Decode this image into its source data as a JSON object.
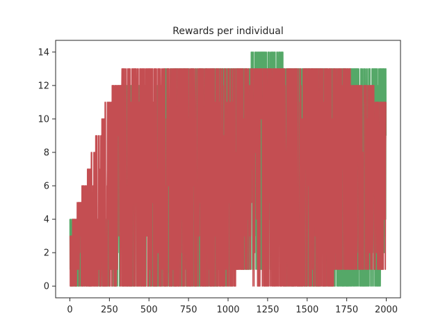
{
  "chart_data": {
    "type": "line",
    "title": "Rewards per individual",
    "xlabel": "",
    "ylabel": "",
    "xlim": [
      -90,
      2090
    ],
    "ylim": [
      -0.7,
      14.7
    ],
    "xticks": [
      0,
      250,
      500,
      750,
      1000,
      1250,
      1500,
      1750,
      2000
    ],
    "yticks": [
      0,
      2,
      4,
      6,
      8,
      10,
      12,
      14
    ],
    "grid": false,
    "n_points": 2000,
    "series": [
      {
        "color": "#55a868",
        "envelope": [
          {
            "x": 0,
            "low": 0,
            "high": 4
          },
          {
            "x": 240,
            "low": 0,
            "high": 4
          },
          {
            "x": 330,
            "low": 0,
            "high": 12
          },
          {
            "x": 560,
            "low": 0,
            "high": 12
          },
          {
            "x": 640,
            "low": 0,
            "high": 13
          },
          {
            "x": 1000,
            "low": 0,
            "high": 13
          },
          {
            "x": 1050,
            "low": 1,
            "high": 13
          },
          {
            "x": 1240,
            "low": 1,
            "high": 14
          },
          {
            "x": 1300,
            "low": 1,
            "high": 14
          },
          {
            "x": 1400,
            "low": 0,
            "high": 13
          },
          {
            "x": 1640,
            "low": 0,
            "high": 13
          },
          {
            "x": 1940,
            "low": 0,
            "high": 13
          },
          {
            "x": 2000,
            "low": 1,
            "high": 13
          }
        ]
      },
      {
        "color": "#c44e52",
        "envelope": [
          {
            "x": 0,
            "low": 0,
            "high": 3
          },
          {
            "x": 235,
            "low": 0,
            "high": 11
          },
          {
            "x": 360,
            "low": 0,
            "high": 13
          },
          {
            "x": 500,
            "low": 0,
            "high": 13
          },
          {
            "x": 640,
            "low": 0,
            "high": 13
          },
          {
            "x": 800,
            "low": 0,
            "high": 13
          },
          {
            "x": 1040,
            "low": 0,
            "high": 13
          },
          {
            "x": 1060,
            "low": 1,
            "high": 13
          },
          {
            "x": 1240,
            "low": 0,
            "high": 13
          },
          {
            "x": 1400,
            "low": 0,
            "high": 13
          },
          {
            "x": 1640,
            "low": 0,
            "high": 13
          },
          {
            "x": 1700,
            "low": 1,
            "high": 13
          },
          {
            "x": 2000,
            "low": 1,
            "high": 11
          }
        ]
      }
    ]
  }
}
